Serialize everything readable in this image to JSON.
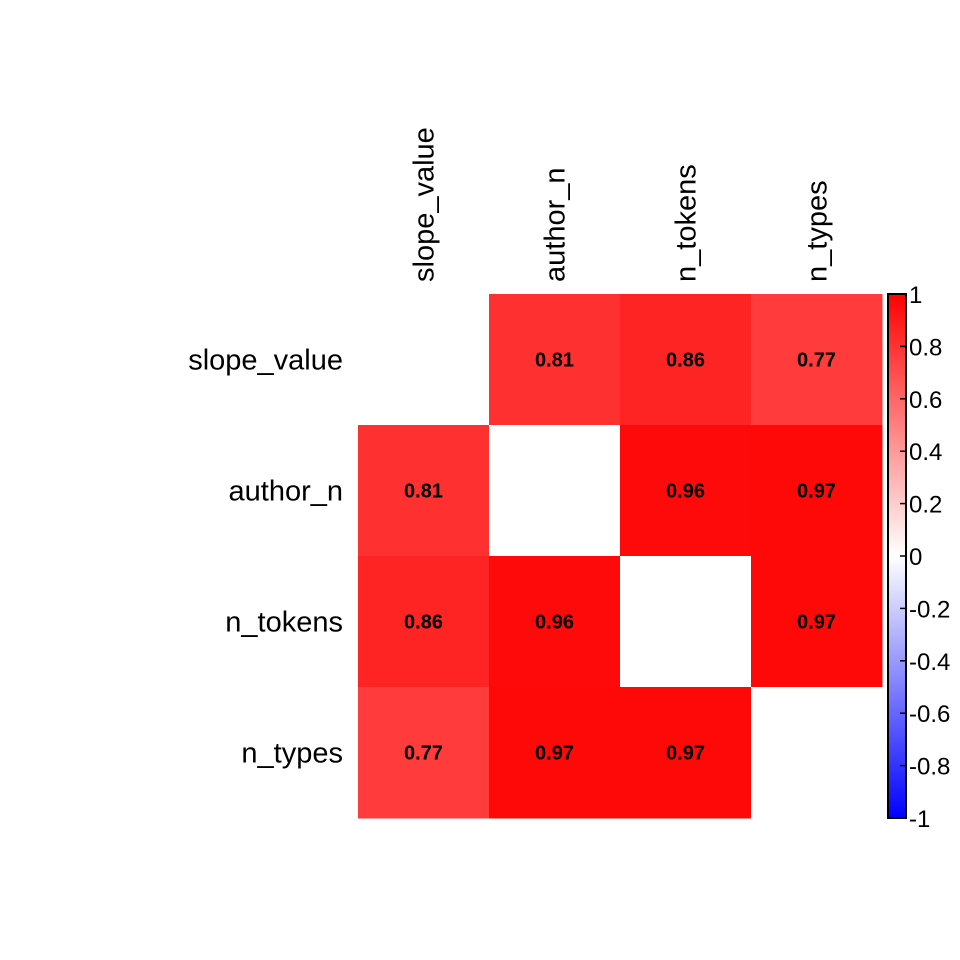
{
  "chart_data": {
    "type": "heatmap",
    "variables": [
      "slope_value",
      "author_n",
      "n_tokens",
      "n_types"
    ],
    "matrix": [
      [
        null,
        0.81,
        0.86,
        0.77
      ],
      [
        0.81,
        null,
        0.96,
        0.97
      ],
      [
        0.86,
        0.96,
        null,
        0.97
      ],
      [
        0.77,
        0.97,
        0.97,
        null
      ]
    ],
    "labels": [
      [
        "",
        "0.81",
        "0.86",
        "0.77"
      ],
      [
        "0.81",
        "",
        "0.96",
        "0.97"
      ],
      [
        "0.86",
        "0.96",
        "",
        "0.97"
      ],
      [
        "0.77",
        "0.97",
        "0.97",
        ""
      ]
    ],
    "colorbar": {
      "range": [
        -1,
        1
      ],
      "ticks": [
        "1",
        "0.8",
        "0.6",
        "0.4",
        "0.2",
        "0",
        "-0.2",
        "-0.4",
        "-0.6",
        "-0.8",
        "-1"
      ],
      "colors": {
        "low": "#0000FF",
        "mid": "#FFFFFF",
        "high": "#FF0000"
      }
    },
    "diagonal_color": "#FFFFFF"
  }
}
